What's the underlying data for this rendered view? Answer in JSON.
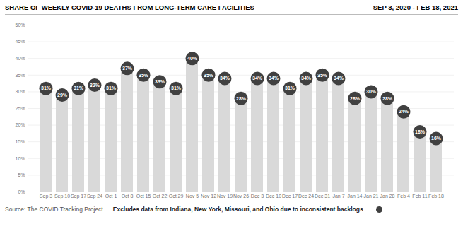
{
  "chart_data": {
    "type": "bar",
    "title": "SHARE OF WEEKLY COVID-19 DEATHS FROM LONG-TERM CARE FACILITIES",
    "subtitle": "SEP 3, 2020 - FEB 18, 2021",
    "annotations": [
      "Source: The COVID Tracking Project",
      "Excludes data from Indiana, New York, Missouri, and Ohio due to inconsistent backlogs"
    ],
    "categories": [
      "Sep 3",
      "Sep 10",
      "Sep 17",
      "Sep 24",
      "Oct 1",
      "Oct 8",
      "Oct 15",
      "Oct 22",
      "Oct 29",
      "Nov 5",
      "Nov 12",
      "Nov 19",
      "Nov 26",
      "Dec 3",
      "Dec 10",
      "Dec 17",
      "Dec 24",
      "Dec 31",
      "Jan 7",
      "Jan 14",
      "Jan 21",
      "Jan 28",
      "Feb 4",
      "Feb 11",
      "Feb 18"
    ],
    "values": [
      31,
      29,
      31,
      32,
      31,
      37,
      35,
      33,
      31,
      40,
      35,
      34,
      28,
      34,
      34,
      31,
      34,
      35,
      34,
      28,
      30,
      28,
      24,
      18,
      16
    ],
    "value_labels": [
      "31%",
      "29%",
      "31%",
      "32%",
      "31%",
      "37%",
      "35%",
      "33%",
      "31%",
      "40%",
      "35%",
      "34%",
      "28%",
      "34%",
      "34%",
      "31%",
      "34%",
      "35%",
      "34%",
      "28%",
      "30%",
      "28%",
      "24%",
      "18%",
      "16%"
    ],
    "data_labels": true,
    "color": "#d9d9d9",
    "ylim": [
      0,
      50
    ],
    "yticks": [
      {
        "value": 0,
        "label": "0%"
      },
      {
        "value": 5,
        "label": "5%"
      },
      {
        "value": 10,
        "label": "10%"
      },
      {
        "value": 15,
        "label": "15%"
      },
      {
        "value": 20,
        "label": "20%"
      },
      {
        "value": 25,
        "label": "25%"
      },
      {
        "value": 30,
        "label": "30%"
      },
      {
        "value": 35,
        "label": "35%"
      },
      {
        "value": 40,
        "label": "40%"
      },
      {
        "value": 45,
        "label": "45%"
      },
      {
        "value": 50,
        "label": "50%"
      }
    ],
    "grid": true
  }
}
